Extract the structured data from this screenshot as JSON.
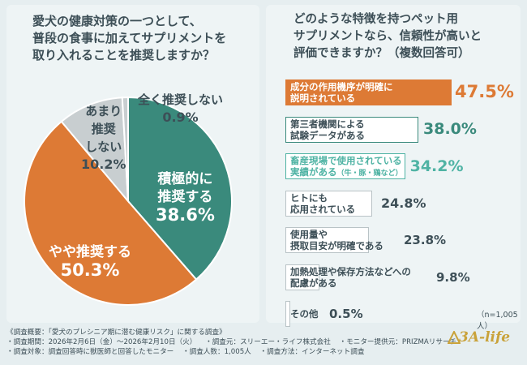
{
  "colors": {
    "teal": "#3a8a7c",
    "orange": "#dd7a35",
    "gray": "#c8ced0",
    "text": "#3d4f57",
    "bar_highlight_text": "#dd7a35",
    "bar_second_text": "#3a8a7c",
    "bar_third_text": "#4fb3a4"
  },
  "question_left": [
    "愛犬の健康対策の一つとして、",
    "普段の食事に加えてサプリメントを",
    "取り入れることを推奨しますか？"
  ],
  "question_right": [
    "どのような特徴を持つペット用",
    "サプリメントなら、信頼性が高いと",
    "評価できますか？（複数回答可）"
  ],
  "pie": {
    "slices": [
      {
        "label_lines": [
          "積極的に",
          "推奨する"
        ],
        "pct": "38.6%"
      },
      {
        "label_lines": [
          "やや推奨する"
        ],
        "pct": "50.3%"
      },
      {
        "label_lines": [
          "あまり",
          "推奨",
          "しない"
        ],
        "pct": "10.2%"
      },
      {
        "label_lines": [
          "全く推奨しない"
        ],
        "pct": "0.9%"
      }
    ]
  },
  "bars": [
    {
      "lines": [
        "成分の作用機序が明確に",
        "説明されている"
      ],
      "pct": "47.5%"
    },
    {
      "lines": [
        "第三者機関による",
        "試験データがある"
      ],
      "pct": "38.0%"
    },
    {
      "lines": [
        "畜産現場で使用されている",
        "実績がある"
      ],
      "note": "（牛・豚・鶏など）",
      "pct": "34.2%"
    },
    {
      "lines": [
        "ヒトにも",
        "応用されている"
      ],
      "pct": "24.8%"
    },
    {
      "lines": [
        "使用量や",
        "摂取目安が明確である"
      ],
      "pct": "23.8%"
    },
    {
      "lines": [
        "加熱処理や保存方法などへの",
        "配慮がある"
      ],
      "pct": "9.8%"
    },
    {
      "lines": [
        "その他"
      ],
      "pct": "0.5%"
    }
  ],
  "n_note": "（n=1,005人）",
  "footer": {
    "title": "《調査概要：「愛犬のプレシニア期に潜む健康リスク」に関する調査》",
    "row1": [
      "・調査期間：2026年2月6日（金）～2026年2月10日（火）",
      "・調査元：スリーエー・ライフ株式会社",
      "・モニター提供元：PRIZMAリサーチ"
    ],
    "row2": [
      "・調査対象：調査回答時に獣医師と回答したモニター",
      "・調査人数：1,005人",
      "・調査方法：インターネット調査"
    ]
  },
  "logo": "3A-life",
  "chart_data": [
    {
      "type": "pie",
      "title": "愛犬の健康対策の一つとして、普段の食事に加えてサプリメントを取り入れることを推奨しますか？",
      "categories": [
        "積極的に推奨する",
        "やや推奨する",
        "あまり推奨しない",
        "全く推奨しない"
      ],
      "values": [
        38.6,
        50.3,
        10.2,
        0.9
      ],
      "unit": "%"
    },
    {
      "type": "bar",
      "title": "どのような特徴を持つペット用サプリメントなら、信頼性が高いと評価できますか？（複数回答可）",
      "categories": [
        "成分の作用機序が明確に説明されている",
        "第三者機関による試験データがある",
        "畜産現場で使用されている実績がある（牛・豚・鶏など）",
        "ヒトにも応用されている",
        "使用量や摂取目安が明確である",
        "加熱処理や保存方法などへの配慮がある",
        "その他"
      ],
      "values": [
        47.5,
        38.0,
        34.2,
        24.8,
        23.8,
        9.8,
        0.5
      ],
      "unit": "%",
      "orientation": "horizontal"
    }
  ]
}
